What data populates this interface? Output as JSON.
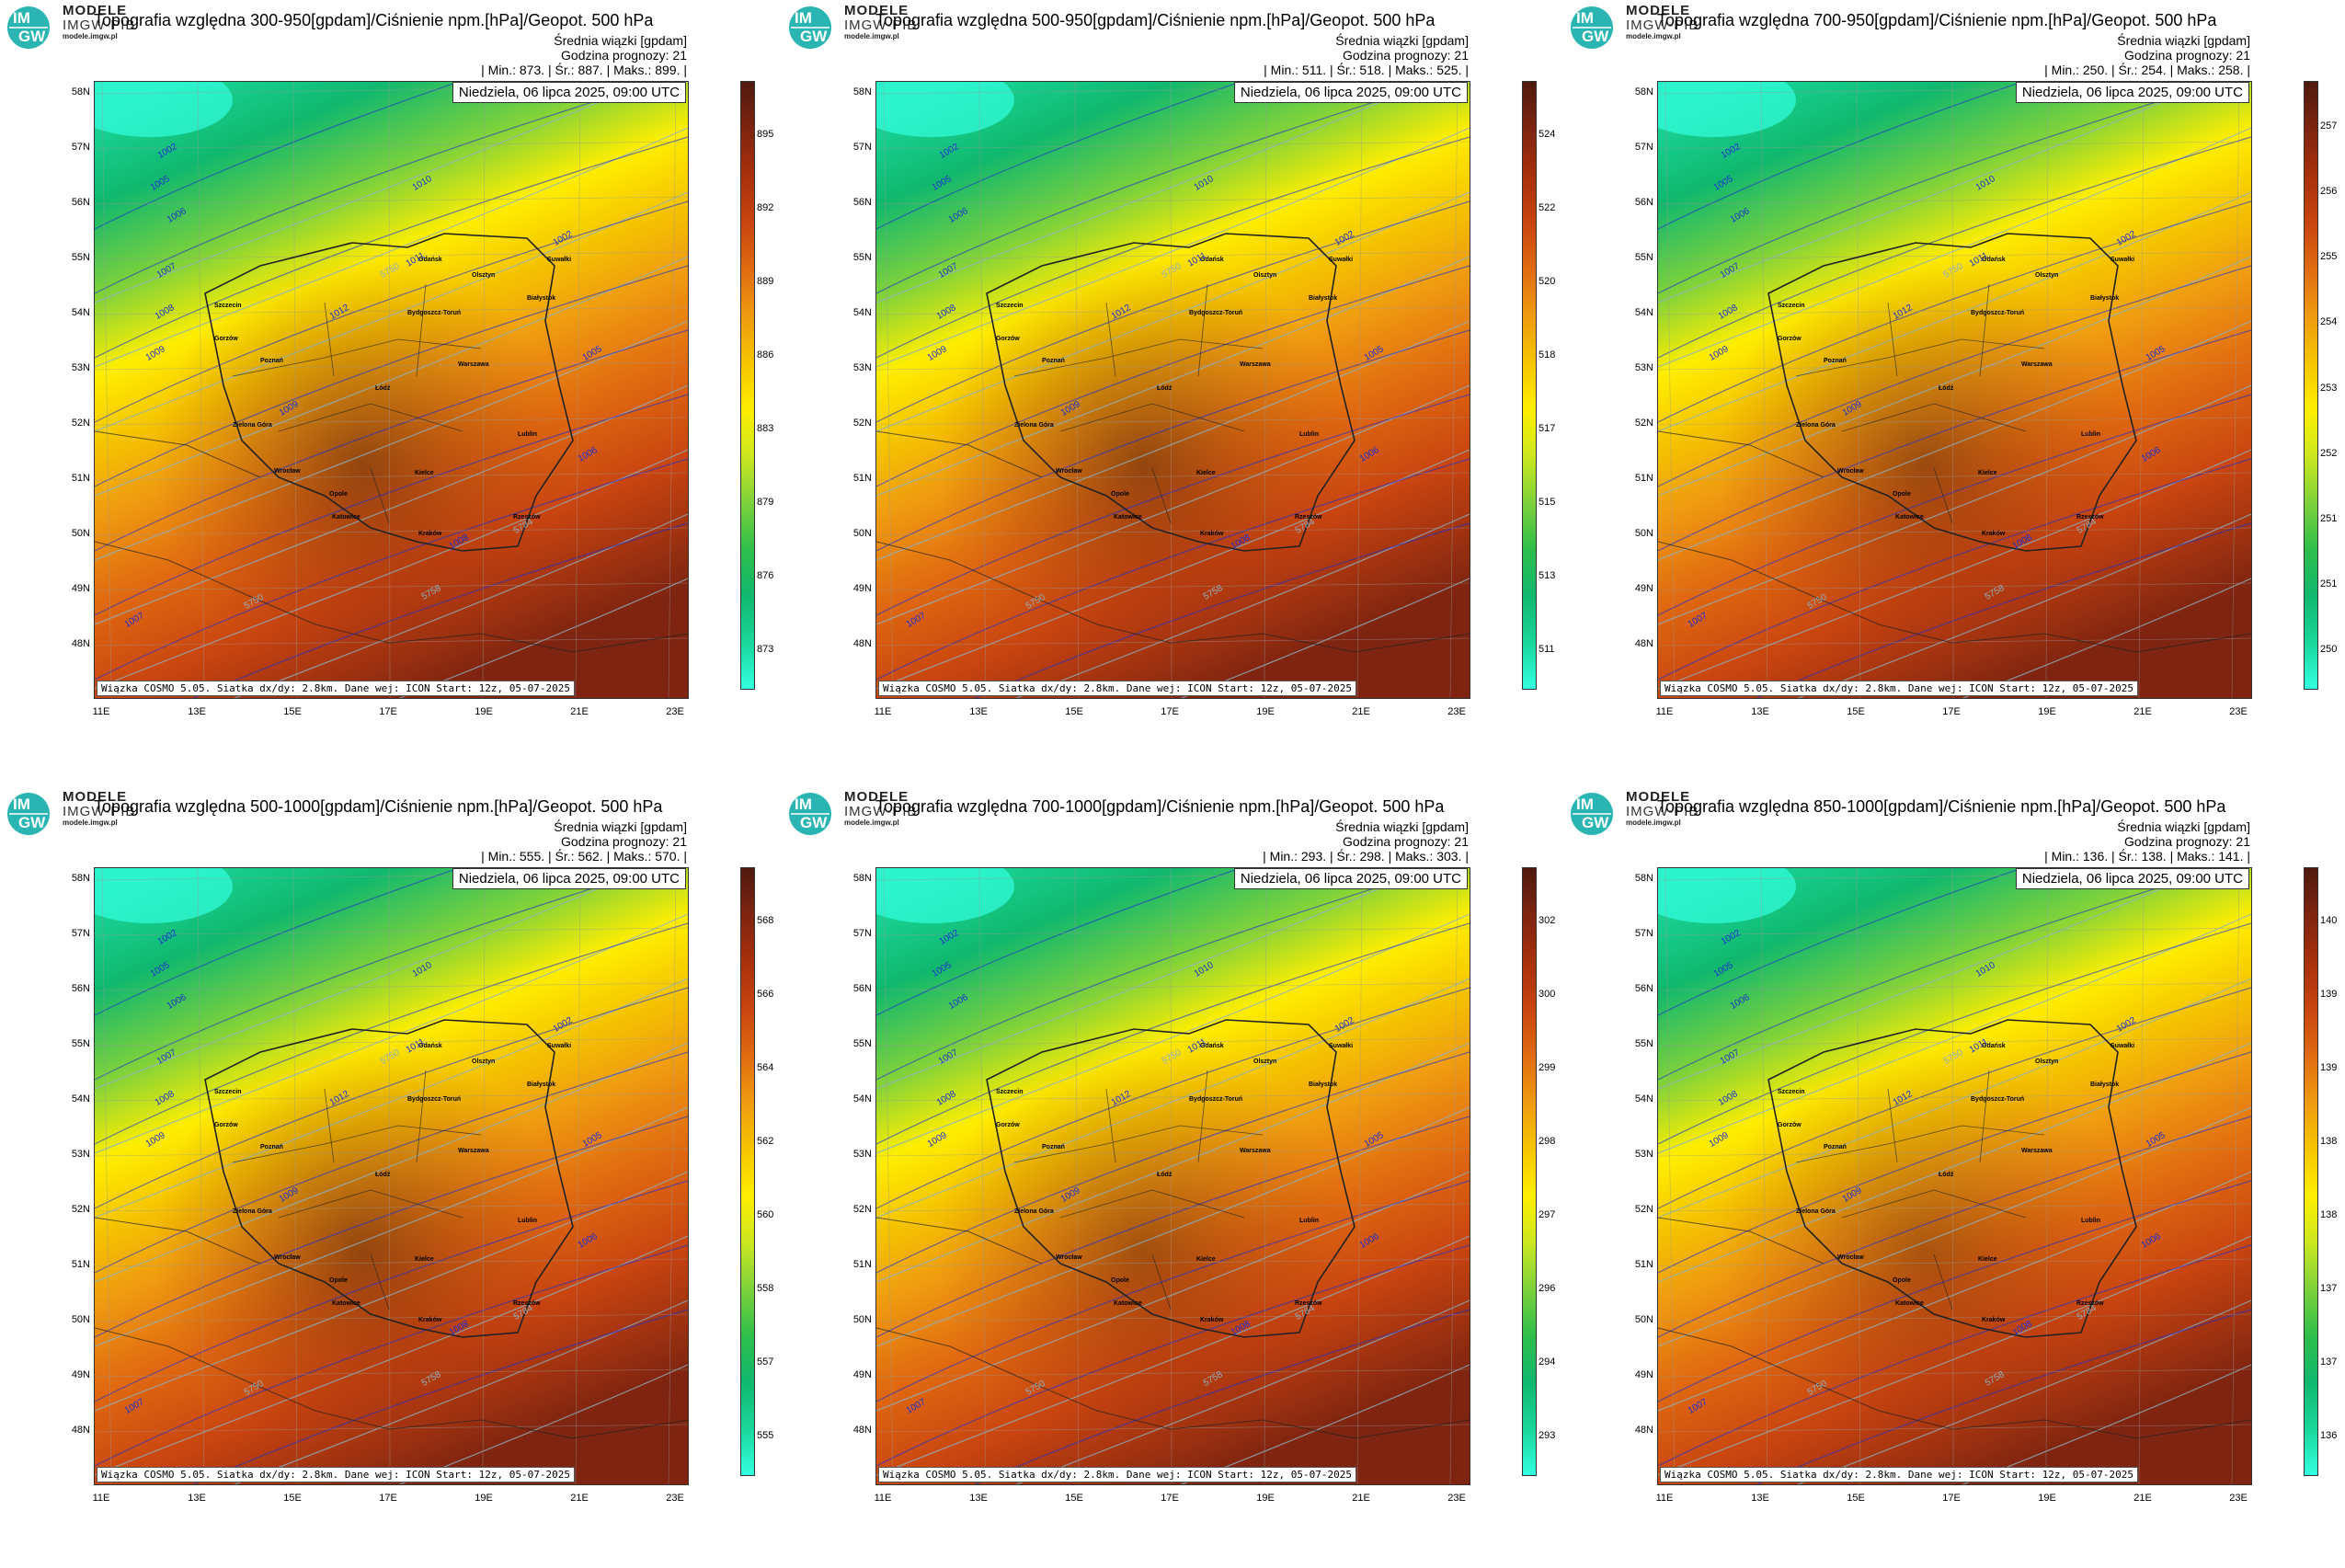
{
  "logo": {
    "title": "MODELE",
    "subtitle": "IMGW-PIB",
    "url": "modele.imgw.pl",
    "badge_top": "IM",
    "badge_bottom": "GW"
  },
  "date_box": "Niedziela, 06 lipca 2025, 09:00 UTC",
  "ensemble_label": "Średnia wiązki [gpdam]",
  "forecast_hour": "Godzina prognozy: 21",
  "footer": "Wiązka COSMO 5.05. Siatka dx/dy: 2.8km. Dane wej: ICON Start: 12z, 05-07-2025",
  "lat_labels": [
    "58N",
    "57N",
    "56N",
    "55N",
    "54N",
    "53N",
    "52N",
    "51N",
    "50N",
    "49N",
    "48N"
  ],
  "lon_labels": [
    "11E",
    "13E",
    "15E",
    "17E",
    "19E",
    "21E",
    "23E"
  ],
  "cities": [
    "Gdańsk",
    "Olsztyn",
    "Suwałki",
    "Szczecin",
    "Białystok",
    "Bydgoszcz-Toruń",
    "Gorzów",
    "Poznań",
    "Warszawa",
    "Łódź",
    "Zielona Góra",
    "Lublin",
    "Wrocław",
    "Opole",
    "Kielce",
    "Katowice",
    "Kraków",
    "Rzeszów"
  ],
  "isobar_labels": [
    "1002",
    "1005",
    "1006",
    "1007",
    "1008",
    "1009",
    "1010",
    "1011",
    "1012"
  ],
  "geopotential_labels": [
    "5750",
    "5758",
    "5784"
  ],
  "colors": {
    "ramp": [
      "#33ffe0",
      "#19d69a",
      "#10b86e",
      "#2fbf4a",
      "#7fd23a",
      "#cce81f",
      "#ffee00",
      "#f5c400",
      "#ef9a10",
      "#e06a10",
      "#c84410",
      "#a8300c",
      "#7e2410",
      "#4f1a0e"
    ],
    "isobar": "#1b2fd0",
    "geopotential": "#8fb0c0",
    "border": "#222222"
  },
  "panels": [
    {
      "title": "Topografia względna 300-950[gpdam]/Ciśnienie npm.[hPa]/Geopot. 500 hPa",
      "stats": "| Min.: 873. | Śr.: 887. | Maks.: 899. |",
      "colorbar": [
        "873",
        "876",
        "879",
        "883",
        "886",
        "889",
        "892",
        "895"
      ],
      "hot_level": 0.55
    },
    {
      "title": "Topografia względna 500-950[gpdam]/Ciśnienie npm.[hPa]/Geopot. 500 hPa",
      "stats": "| Min.: 511. | Śr.: 518. | Maks.: 525. |",
      "colorbar": [
        "511",
        "513",
        "515",
        "517",
        "518",
        "520",
        "522",
        "524"
      ],
      "hot_level": 0.55
    },
    {
      "title": "Topografia względna 700-950[gpdam]/Ciśnienie npm.[hPa]/Geopot. 500 hPa",
      "stats": "| Min.: 250. | Śr.: 254. | Maks.: 258. |",
      "colorbar": [
        "250",
        "251",
        "251",
        "252",
        "253",
        "254",
        "255",
        "256",
        "257"
      ],
      "hot_level": 0.5
    },
    {
      "title": "Topografia względna 500-1000[gpdam]/Ciśnienie npm.[hPa]/Geopot. 500 hPa",
      "stats": "| Min.: 555. | Śr.: 562. | Maks.: 570. |",
      "colorbar": [
        "555",
        "557",
        "558",
        "560",
        "562",
        "564",
        "566",
        "568"
      ],
      "hot_level": 0.55
    },
    {
      "title": "Topografia względna 700-1000[gpdam]/Ciśnienie npm.[hPa]/Geopot. 500 hPa",
      "stats": "| Min.: 293. | Śr.: 298. | Maks.: 303. |",
      "colorbar": [
        "293",
        "294",
        "296",
        "297",
        "298",
        "299",
        "300",
        "302"
      ],
      "hot_level": 0.45
    },
    {
      "title": "Topografia względna 850-1000[gpdam]/Ciśnienie npm.[hPa]/Geopot. 500 hPa",
      "stats": "| Min.: 136. | Śr.: 138. | Maks.: 141. |",
      "colorbar": [
        "136",
        "137",
        "137",
        "138",
        "138",
        "139",
        "139",
        "140"
      ],
      "hot_level": 0.4
    }
  ]
}
